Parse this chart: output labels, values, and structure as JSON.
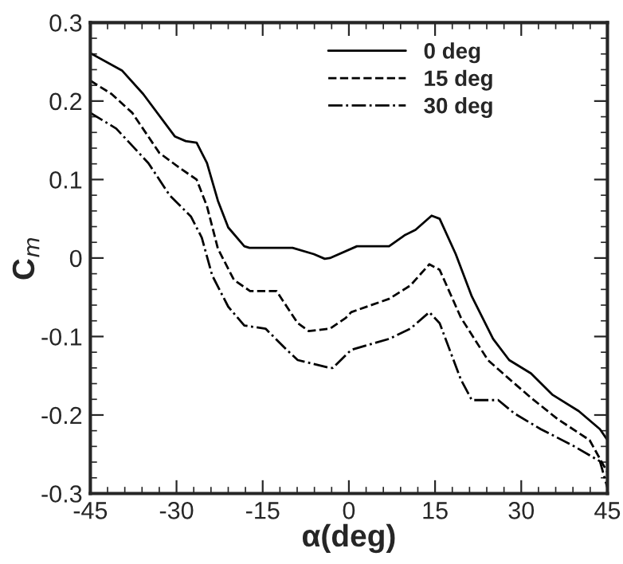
{
  "chart_data": {
    "type": "line",
    "xlabel": "α(deg)",
    "ylabel": "C$_{m}$",
    "xlim": [
      -45,
      45
    ],
    "xticks": [
      -45,
      -30,
      -15,
      0,
      15,
      30,
      45
    ],
    "ylim": [
      -0.3,
      0.3
    ],
    "yticks": [
      -0.3,
      -0.2,
      -0.1,
      0,
      0.1,
      0.2,
      0.3
    ],
    "grid": false,
    "legend": "top",
    "marker": "none",
    "series": [
      {
        "name": "0 deg",
        "color": "#000000",
        "line_style": "solid",
        "x": [
          -45,
          -39.5,
          -35.8,
          -30.3,
          -28.4,
          -26.5,
          -24.7,
          -22.8,
          -21,
          -18.2,
          -17.3,
          -9.8,
          -6.1,
          -4.2,
          -3.3,
          1.4,
          7,
          9.7,
          11.6,
          14.4,
          15.8,
          18.6,
          21.4,
          25.1,
          27.9,
          31.7,
          35.4,
          40,
          43.7,
          45
        ],
        "values": [
          0.261,
          0.239,
          0.209,
          0.155,
          0.149,
          0.147,
          0.121,
          0.073,
          0.039,
          0.015,
          0.013,
          0.013,
          0.005,
          -0.001,
          0.0,
          0.015,
          0.015,
          0.029,
          0.036,
          0.054,
          0.05,
          0.005,
          -0.049,
          -0.103,
          -0.13,
          -0.147,
          -0.174,
          -0.195,
          -0.218,
          -0.232
        ]
      },
      {
        "name": "15 deg",
        "color": "#000000",
        "line_style": "dashed",
        "x": [
          -45,
          -41.3,
          -37.7,
          -33,
          -29.3,
          -26.5,
          -24.7,
          -22.8,
          -20,
          -17.2,
          -12.6,
          -8.9,
          -7,
          -3.3,
          -0.5,
          0.4,
          7,
          10.7,
          14,
          15.8,
          19.5,
          24.2,
          27.9,
          31.7,
          36.3,
          41.9,
          45
        ],
        "values": [
          0.226,
          0.209,
          0.185,
          0.134,
          0.114,
          0.1,
          0.066,
          0.012,
          -0.028,
          -0.042,
          -0.042,
          -0.083,
          -0.093,
          -0.09,
          -0.076,
          -0.069,
          -0.052,
          -0.035,
          -0.008,
          -0.015,
          -0.076,
          -0.13,
          -0.154,
          -0.178,
          -0.205,
          -0.232,
          -0.273
        ]
      },
      {
        "name": "30 deg",
        "color": "#000000",
        "line_style": "dashdot",
        "x": [
          -45,
          -40.5,
          -34.9,
          -31.2,
          -27.5,
          -25.6,
          -23.8,
          -21,
          -18.2,
          -14.5,
          -10.8,
          -8.9,
          -3.3,
          -2.8,
          0.4,
          7,
          10.7,
          14,
          15.8,
          19.5,
          21.4,
          26,
          28.8,
          33.4,
          39,
          43.7,
          45
        ],
        "values": [
          0.185,
          0.165,
          0.121,
          0.08,
          0.053,
          0.026,
          -0.022,
          -0.062,
          -0.086,
          -0.09,
          -0.117,
          -0.13,
          -0.14,
          -0.14,
          -0.117,
          -0.103,
          -0.09,
          -0.069,
          -0.083,
          -0.155,
          -0.181,
          -0.181,
          -0.198,
          -0.218,
          -0.239,
          -0.259,
          -0.293
        ]
      }
    ]
  }
}
